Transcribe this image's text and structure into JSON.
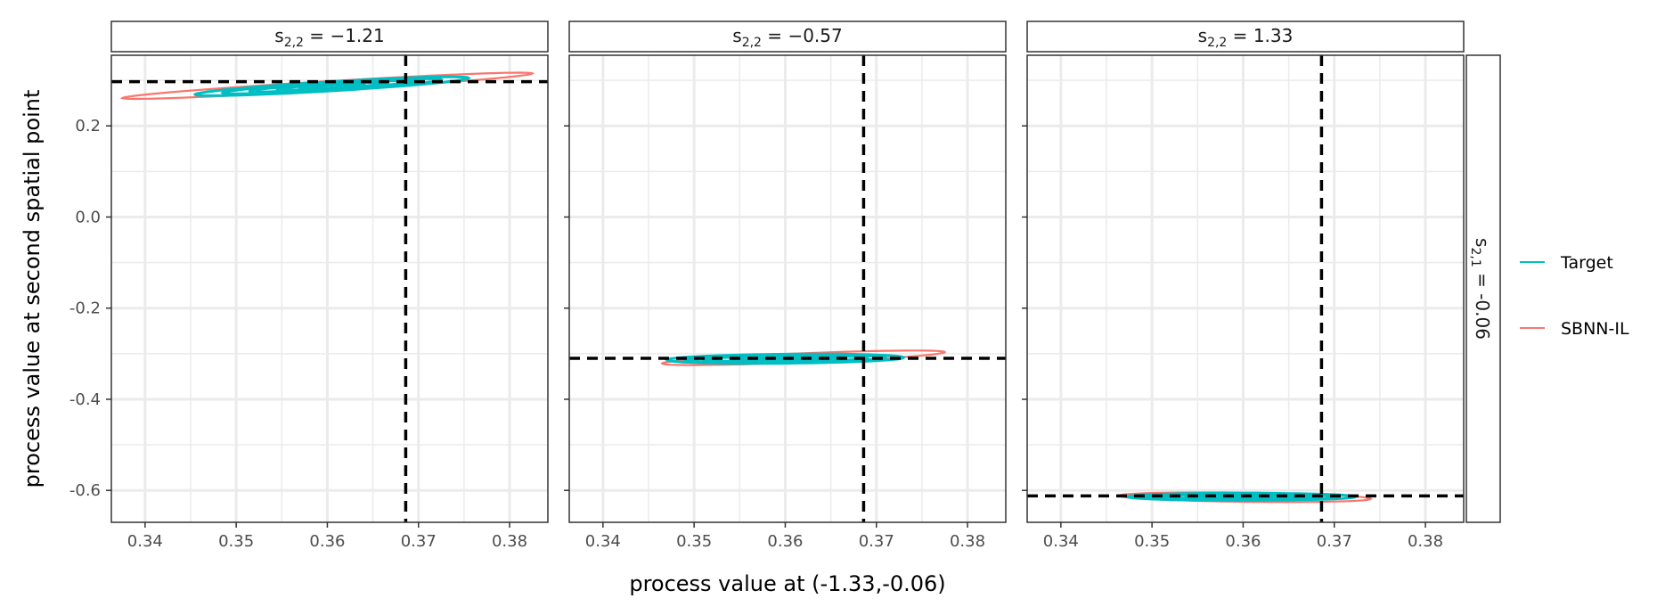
{
  "chart_data": {
    "type": "line",
    "xlabel": "process value at (-1.33,-0.06)",
    "ylabel": "process value at second spatial point",
    "xlim": [
      0.3363,
      0.3842
    ],
    "ylim": [
      -0.67,
      0.355
    ],
    "x_ticks": [
      0.34,
      0.35,
      0.36,
      0.37,
      0.38
    ],
    "x_tick_labels": [
      "0.34",
      "0.35",
      "0.36",
      "0.37",
      "0.38"
    ],
    "y_ticks": [
      0.2,
      0.0,
      -0.2,
      -0.4,
      -0.6
    ],
    "y_tick_labels": [
      "0.2",
      "0.0",
      "-0.2",
      "-0.4",
      "-0.6"
    ],
    "grid": true,
    "legend_position": "right",
    "row_strip": {
      "base": "s",
      "sub": "2,1",
      "rel": " = ",
      "value": "-0.06"
    },
    "series": [
      {
        "name": "Target",
        "color": "#00BFC4"
      },
      {
        "name": "SBNN-IL",
        "color": "#F8766D"
      }
    ],
    "facets": [
      {
        "strip": {
          "base": "s",
          "sub": "2,2",
          "rel": " = ",
          "value": "−1.21"
        },
        "ref_x": 0.3686,
        "ref_y": 0.297,
        "contours": {
          "Target": {
            "center": [
              0.3605,
              0.287
            ],
            "levels": [
              [
                0.015,
                0.01
              ],
              [
                0.012,
                0.008
              ],
              [
                0.009,
                0.006
              ],
              [
                0.006,
                0.0045
              ],
              [
                0.0035,
                0.003
              ]
            ],
            "slope": 1.2
          },
          "SBNN-IL": {
            "center": [
              0.36,
              0.288
            ],
            "levels": [
              [
                0.0225,
                0.01
              ]
            ],
            "slope": 1.2
          }
        }
      },
      {
        "strip": {
          "base": "s",
          "sub": "2,2",
          "rel": " = ",
          "value": "−0.57"
        },
        "ref_x": 0.3686,
        "ref_y": -0.31,
        "contours": {
          "Target": {
            "center": [
              0.36,
              -0.311
            ],
            "levels": [
              [
                0.013,
                0.01
              ],
              [
                0.011,
                0.008
              ],
              [
                0.009,
                0.006
              ],
              [
                0.006,
                0.0045
              ],
              [
                0.0035,
                0.003
              ]
            ],
            "slope": 0.2
          },
          "SBNN-IL": {
            "center": [
              0.362,
              -0.309
            ],
            "levels": [
              [
                0.0155,
                0.01
              ]
            ],
            "slope": 0.8
          }
        }
      },
      {
        "strip": {
          "base": "s",
          "sub": "2,2",
          "rel": " = ",
          "value": "1.33"
        },
        "ref_x": 0.3686,
        "ref_y": -0.612,
        "contours": {
          "Target": {
            "center": [
              0.3598,
              -0.614
            ],
            "levels": [
              [
                0.0125,
                0.008
              ],
              [
                0.0105,
                0.0065
              ],
              [
                0.0085,
                0.005
              ],
              [
                0.006,
                0.0038
              ],
              [
                0.0035,
                0.0025
              ]
            ],
            "slope": 0.0
          },
          "SBNN-IL": {
            "center": [
              0.3602,
              -0.615
            ],
            "levels": [
              [
                0.0138,
                0.01
              ]
            ],
            "slope": -0.25
          }
        }
      }
    ]
  }
}
